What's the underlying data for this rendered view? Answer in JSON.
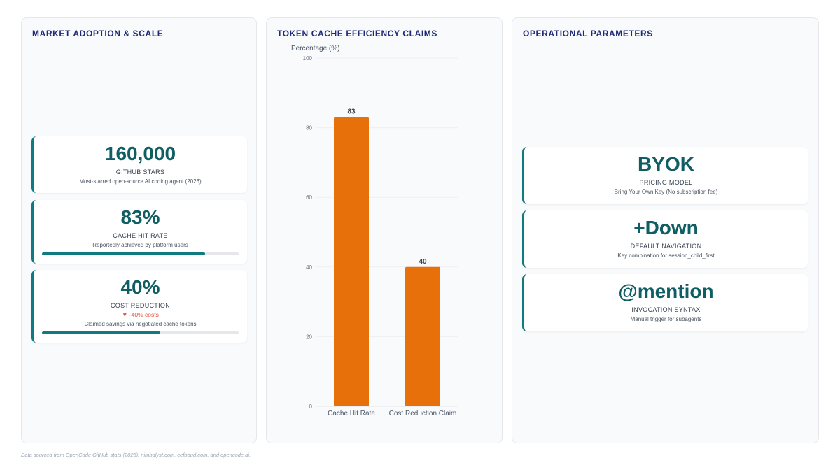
{
  "panels": {
    "adoption": {
      "title": "MARKET ADOPTION & SCALE",
      "cards": [
        {
          "metric": "160,000",
          "label": "GITHUB STARS",
          "desc": "Most-starred open-source AI coding agent (2026)"
        },
        {
          "metric": "83%",
          "label": "CACHE HIT RATE",
          "desc": "Reportedly achieved by platform users",
          "progress": 0.83
        },
        {
          "metric": "40%",
          "label": "COST REDUCTION",
          "trend": "▼ -40% costs",
          "desc": "Claimed savings via negotiated cache tokens",
          "progress": 0.6
        }
      ]
    },
    "chart": {
      "title": "TOKEN CACHE EFFICIENCY CLAIMS"
    },
    "operational": {
      "title": "OPERATIONAL PARAMETERS",
      "cards": [
        {
          "metric": "BYOK",
          "label": "PRICING MODEL",
          "desc": "Bring Your Own Key (No subscription fee)"
        },
        {
          "metric": "+Down",
          "label": "DEFAULT NAVIGATION",
          "desc": "Key combination for session_child_first"
        },
        {
          "metric": "@mention",
          "label": "INVOCATION SYNTAX",
          "desc": "Manual trigger for subagents"
        }
      ]
    }
  },
  "chart_data": {
    "type": "bar",
    "title": "TOKEN CACHE EFFICIENCY CLAIMS",
    "ylabel": "Percentage (%)",
    "xlabel": "",
    "categories": [
      "Cache Hit Rate",
      "Cost Reduction Claim"
    ],
    "values": [
      83,
      40
    ],
    "ylim": [
      0,
      100
    ],
    "yticks": [
      0,
      20,
      40,
      60,
      80,
      100
    ],
    "grid": true,
    "bar_color": "#e8700a"
  },
  "footer": "Data sourced from OpenCode GitHub stats (2026), nimbalyst.com, cefboud.com, and opencode.ai.",
  "colors": {
    "accent": "#0f7b80",
    "title": "#1e2a78",
    "bar": "#e8700a",
    "trend": "#e0533d"
  }
}
